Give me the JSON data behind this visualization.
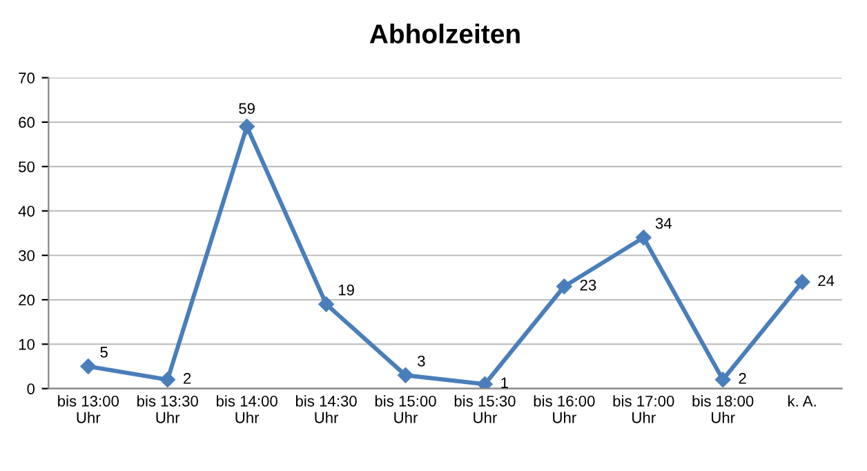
{
  "chart_data": {
    "type": "line",
    "title": "Abholzeiten",
    "categories": [
      "bis 13:00\nUhr",
      "bis 13:30\nUhr",
      "bis 14:00\nUhr",
      "bis 14:30\nUhr",
      "bis 15:00\nUhr",
      "bis 15:30\nUhr",
      "bis 16:00\nUhr",
      "bis 17:00\nUhr",
      "bis 18:00\nUhr",
      "k. A."
    ],
    "series": [
      {
        "color": "#4a7ebb",
        "values": [
          5,
          2,
          59,
          19,
          3,
          1,
          23,
          34,
          2,
          24
        ]
      }
    ],
    "ylim": [
      0,
      70
    ],
    "yticks": [
      0,
      10,
      20,
      30,
      40,
      50,
      60,
      70
    ],
    "grid": "y",
    "legend": false,
    "marker": "diamond",
    "line_style": "solid",
    "data_labels": true
  }
}
